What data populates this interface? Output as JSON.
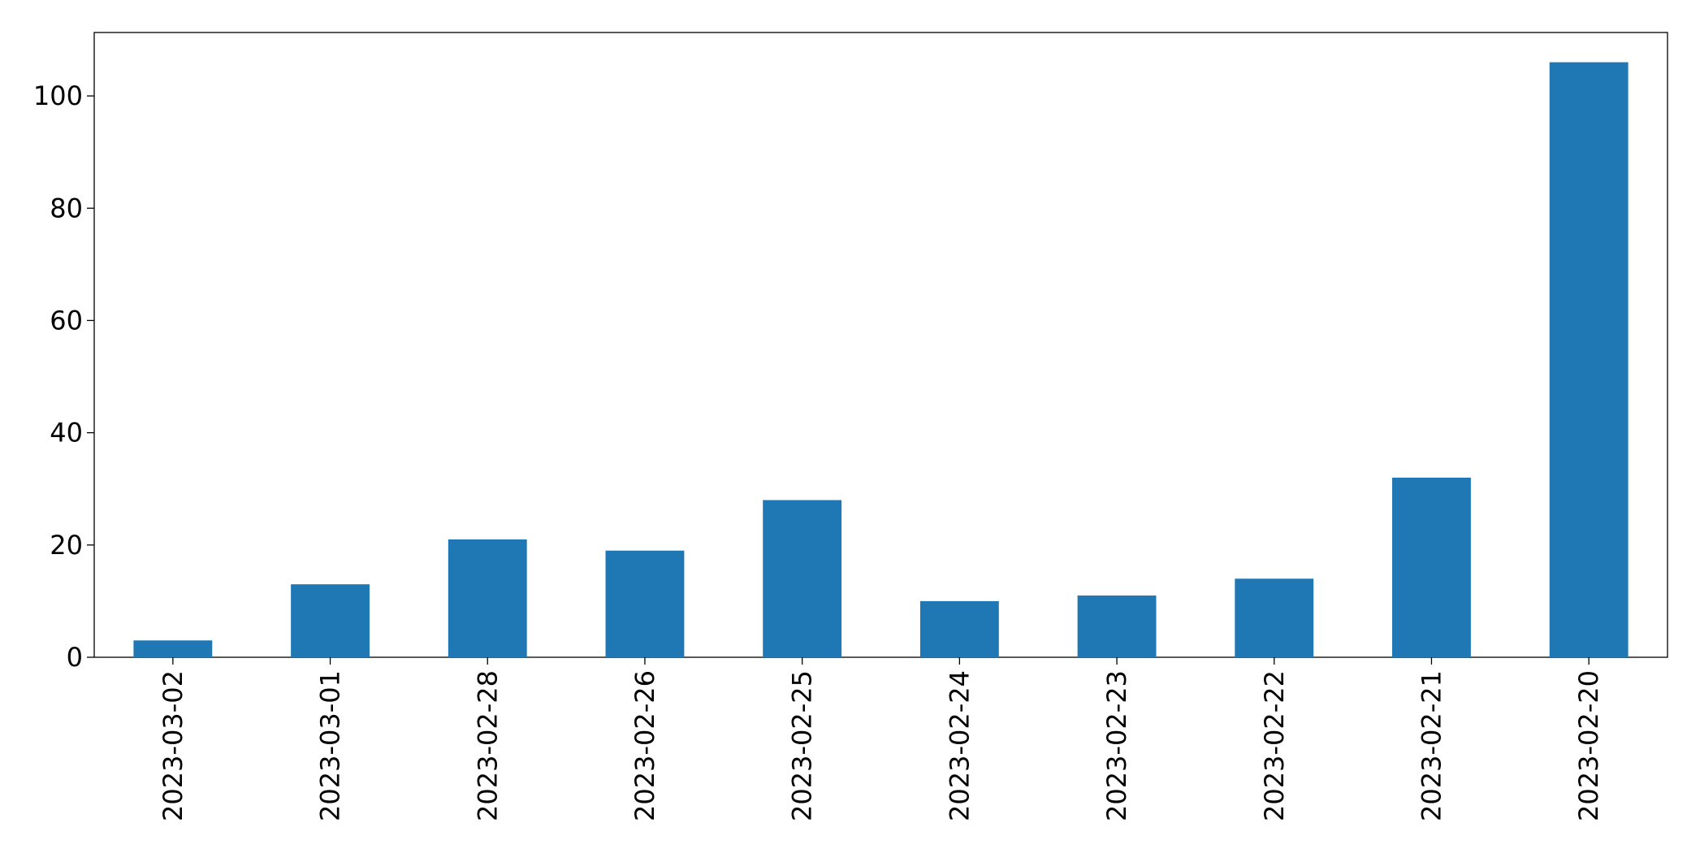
{
  "chart_data": {
    "type": "bar",
    "categories": [
      "2023-03-02",
      "2023-03-01",
      "2023-02-28",
      "2023-02-26",
      "2023-02-25",
      "2023-02-24",
      "2023-02-23",
      "2023-02-22",
      "2023-02-21",
      "2023-02-20"
    ],
    "values": [
      3,
      13,
      21,
      19,
      28,
      10,
      11,
      14,
      32,
      106
    ],
    "color": "#1f77b4",
    "ylim": [
      0,
      111.3
    ],
    "yticks": [
      0,
      20,
      40,
      60,
      80,
      100
    ],
    "grid": false
  }
}
